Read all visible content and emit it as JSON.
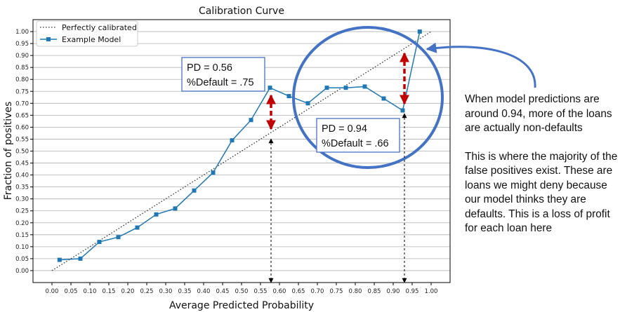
{
  "chart_data": {
    "type": "line",
    "title": "Calibration Curve",
    "xlabel": "Average Predicted Probability",
    "ylabel": "Fraction of positives",
    "xlim": [
      -0.05,
      1.05
    ],
    "ylim": [
      -0.05,
      1.05
    ],
    "xticks": [
      "0.00",
      "0.05",
      "0.10",
      "0.15",
      "0.20",
      "0.25",
      "0.30",
      "0.35",
      "0.40",
      "0.45",
      "0.50",
      "0.55",
      "0.60",
      "0.65",
      "0.70",
      "0.75",
      "0.80",
      "0.85",
      "0.90",
      "0.95",
      "1.00"
    ],
    "yticks": [
      "0.00",
      "0.05",
      "0.10",
      "0.15",
      "0.20",
      "0.25",
      "0.30",
      "0.35",
      "0.40",
      "0.45",
      "0.50",
      "0.55",
      "0.60",
      "0.65",
      "0.70",
      "0.75",
      "0.80",
      "0.85",
      "0.90",
      "0.95",
      "1.00"
    ],
    "grid": "horizontal",
    "legend_position": "top-left",
    "series": [
      {
        "name": "Perfectly calibrated",
        "style": "dotted",
        "color": "#333333",
        "x": [
          0,
          1
        ],
        "y": [
          0,
          1
        ]
      },
      {
        "name": "Example Model",
        "style": "line-square",
        "color": "#1f77b4",
        "x": [
          0.02,
          0.075,
          0.125,
          0.175,
          0.225,
          0.275,
          0.325,
          0.375,
          0.425,
          0.475,
          0.525,
          0.575,
          0.625,
          0.675,
          0.725,
          0.775,
          0.825,
          0.875,
          0.925,
          0.97
        ],
        "y": [
          0.045,
          0.05,
          0.12,
          0.14,
          0.18,
          0.235,
          0.26,
          0.335,
          0.41,
          0.545,
          0.63,
          0.765,
          0.73,
          0.7,
          0.765,
          0.765,
          0.77,
          0.72,
          0.67,
          1.0
        ]
      }
    ],
    "annotations": [
      {
        "lines": [
          "PD = 0.56",
          "%Default = .75"
        ]
      },
      {
        "lines": [
          "PD = 0.94",
          "%Default = .66"
        ]
      }
    ],
    "side_note": [
      "When model predictions are around 0.94, more of the loans are actually non-defaults",
      "This is where the majority of the false positives exist.  These are loans we might deny because our model thinks they are defaults.  This is a loss of profit for each loan here"
    ],
    "colors": {
      "model": "#1f77b4",
      "highlight_circle": "#4472c4",
      "arrow_red": "#c00000",
      "grid": "#b0b0b0"
    }
  }
}
